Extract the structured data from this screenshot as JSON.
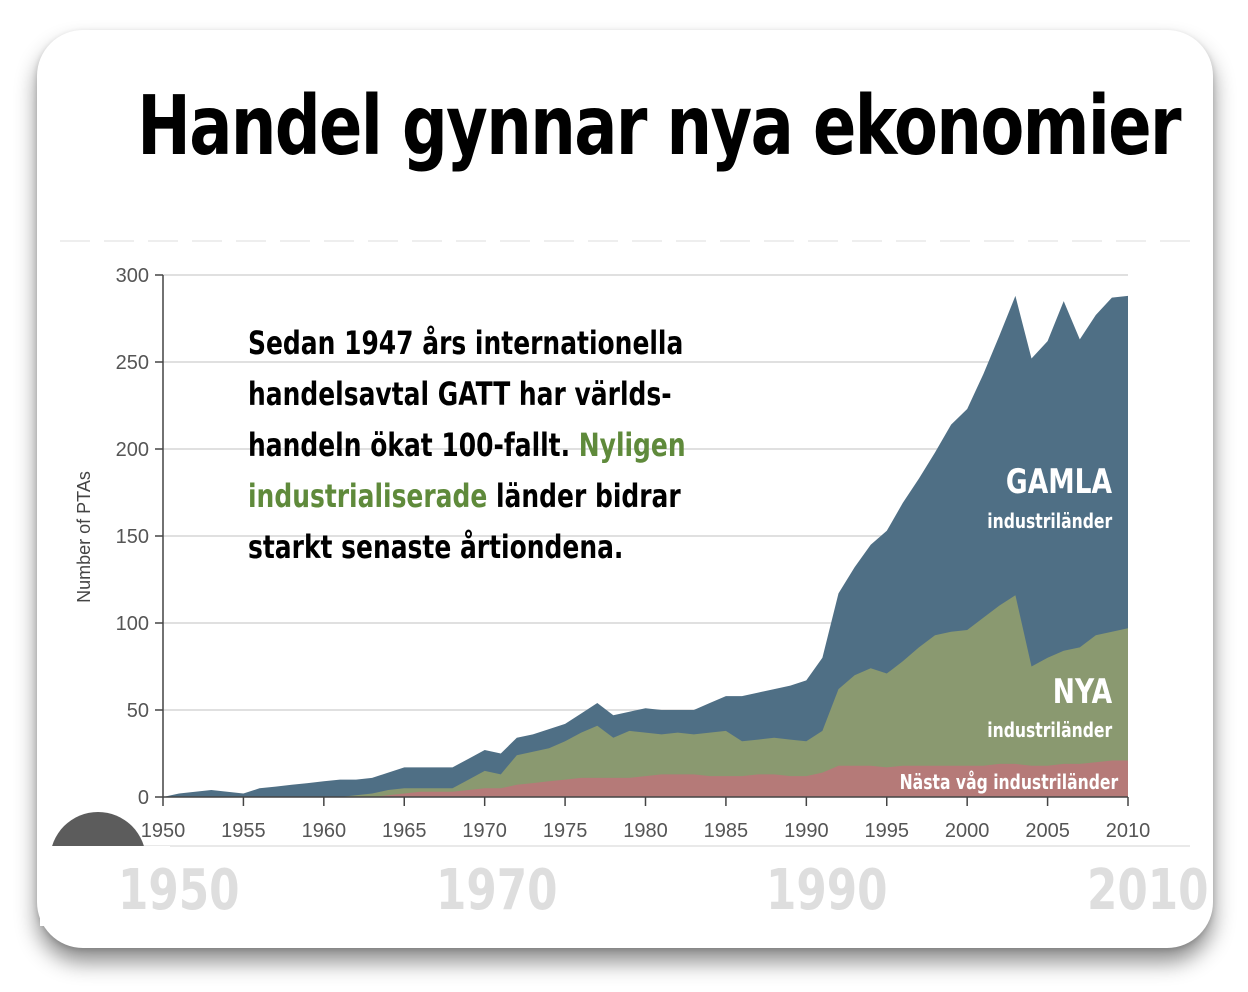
{
  "slide": {
    "title": "Handel gynnar nya ekonomier",
    "callout": {
      "line1": "Sedan 1947 års internationella",
      "line2": "handelsavtal GATT har världs-",
      "line3_black": "handeln ökat 100-fallt. ",
      "line3_green": "Nyligen",
      "line4_green": "industrialiserade",
      "line4_black": " länder bidrar",
      "line5": "starkt senaste årtiondena."
    },
    "labels": {
      "old_big": "GAMLA",
      "old_small": "industriländer",
      "new_big": "NYA",
      "new_small": "industriländer",
      "next_wave": "Nästa våg industriländer"
    },
    "decades": [
      "1950",
      "1970",
      "1990",
      "2010"
    ],
    "colors": {
      "old": "#4f6f85",
      "new": "#8a9970",
      "next": "#b57a78",
      "green_text": "#5f8a3b"
    }
  },
  "chart_data": {
    "type": "area",
    "stacked": false,
    "ylabel": "Number of PTAs",
    "xlim": [
      1950,
      2010
    ],
    "ylim": [
      0,
      300
    ],
    "x_ticks": [
      1950,
      1955,
      1960,
      1965,
      1970,
      1975,
      1980,
      1985,
      1990,
      1995,
      2000,
      2005,
      2010
    ],
    "y_ticks": [
      0,
      50,
      100,
      150,
      200,
      250,
      300
    ],
    "grid": true,
    "x": [
      1950,
      1951,
      1952,
      1953,
      1954,
      1955,
      1956,
      1957,
      1958,
      1959,
      1960,
      1961,
      1962,
      1963,
      1964,
      1965,
      1966,
      1967,
      1968,
      1969,
      1970,
      1971,
      1972,
      1973,
      1974,
      1975,
      1976,
      1977,
      1978,
      1979,
      1980,
      1981,
      1982,
      1983,
      1984,
      1985,
      1986,
      1987,
      1988,
      1989,
      1990,
      1991,
      1992,
      1993,
      1994,
      1995,
      1996,
      1997,
      1998,
      1999,
      2000,
      2001,
      2002,
      2003,
      2004,
      2005,
      2006,
      2007,
      2008,
      2009,
      2010
    ],
    "series": [
      {
        "key": "old",
        "values": [
          0,
          2,
          3,
          4,
          3,
          2,
          5,
          6,
          7,
          8,
          9,
          10,
          10,
          11,
          14,
          17,
          17,
          17,
          17,
          22,
          27,
          25,
          34,
          36,
          39,
          42,
          48,
          54,
          47,
          49,
          51,
          50,
          50,
          50,
          54,
          58,
          58,
          60,
          62,
          64,
          67,
          80,
          117,
          132,
          145,
          153,
          169,
          183,
          198,
          214,
          223,
          243,
          265,
          288,
          252,
          262,
          285,
          263,
          277,
          287,
          288
        ]
      },
      {
        "key": "new",
        "values": [
          0,
          0,
          0,
          0,
          0,
          0,
          0,
          0,
          0,
          0,
          0,
          0,
          1,
          2,
          4,
          5,
          5,
          5,
          5,
          10,
          15,
          13,
          24,
          26,
          28,
          32,
          37,
          41,
          34,
          38,
          37,
          36,
          37,
          36,
          37,
          38,
          32,
          33,
          34,
          33,
          32,
          38,
          62,
          70,
          74,
          71,
          78,
          86,
          93,
          95,
          96,
          103,
          110,
          116,
          75,
          80,
          84,
          86,
          93,
          95,
          97
        ]
      },
      {
        "key": "next",
        "values": [
          0,
          0,
          0,
          0,
          0,
          0,
          0,
          0,
          0,
          0,
          0,
          0,
          0,
          0,
          1,
          2,
          3,
          3,
          3,
          4,
          5,
          5,
          7,
          8,
          9,
          10,
          11,
          11,
          11,
          11,
          12,
          13,
          13,
          13,
          12,
          12,
          12,
          13,
          13,
          12,
          12,
          14,
          18,
          18,
          18,
          17,
          18,
          18,
          18,
          18,
          18,
          18,
          19,
          19,
          18,
          18,
          19,
          19,
          20,
          21,
          21
        ]
      }
    ]
  }
}
